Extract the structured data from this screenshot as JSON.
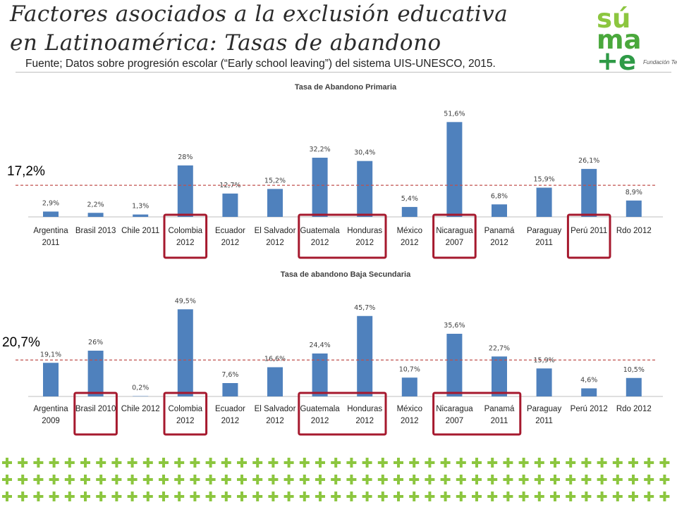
{
  "slide": {
    "title": "Factores asociados a la exclusión educativa en Latinoamérica: Tasas de abandono",
    "subtitle": "Fuente; Datos sobre progresión escolar (“Early school leaving”) del sistema UIS-UNESCO, 2015."
  },
  "logo": {
    "line1": "sú",
    "line2": "ma",
    "line3": "+e",
    "brand": "Fundación Telefónica",
    "colors": [
      "#8cc63f",
      "#4aa83c",
      "#2e9a46"
    ]
  },
  "colors": {
    "bar": "#4f81bd",
    "reference_line": "#c0504d",
    "highlight_box": "#a6192e",
    "pattern_plus": "#8cc63f"
  },
  "chart_data": [
    {
      "type": "bar",
      "title": "Tasa de Abandono Primaria",
      "categories": [
        [
          "Argentina",
          "2011"
        ],
        [
          "Brasil 2013"
        ],
        [
          "Chile 2011"
        ],
        [
          "Colombia",
          "2012"
        ],
        [
          "Ecuador",
          "2012"
        ],
        [
          "El Salvador",
          "2012"
        ],
        [
          "Guatemala",
          "2012"
        ],
        [
          "Honduras",
          "2012"
        ],
        [
          "México",
          "2012"
        ],
        [
          "Nicaragua",
          "2007"
        ],
        [
          "Panamá",
          "2012"
        ],
        [
          "Paraguay",
          "2011"
        ],
        [
          "Perú 2011"
        ],
        [
          "Rdo 2012"
        ]
      ],
      "values": [
        2.9,
        2.2,
        1.3,
        28,
        12.7,
        15.2,
        32.2,
        30.4,
        5.4,
        51.6,
        6.8,
        15.9,
        26.1,
        8.9
      ],
      "value_labels": [
        "2,9%",
        "2,2%",
        "1,3%",
        "28%",
        "12,7%",
        "15,2%",
        "32,2%",
        "30,4%",
        "5,4%",
        "51,6%",
        "6,8%",
        "15,9%",
        "26,1%",
        "8,9%"
      ],
      "reference": {
        "value": 17.2,
        "label": "17,2%"
      },
      "highlight_groups": [
        [
          3
        ],
        [
          6,
          7
        ],
        [
          9
        ],
        [
          12
        ]
      ],
      "ylim": [
        0,
        55
      ],
      "xlabel": "",
      "ylabel": "",
      "grid": false,
      "legend": "none"
    },
    {
      "type": "bar",
      "title": "Tasa de abandono Baja Secundaria",
      "categories": [
        [
          "Argentina",
          "2009"
        ],
        [
          "Brasil 2010"
        ],
        [
          "Chile 2012"
        ],
        [
          "Colombia",
          "2012"
        ],
        [
          "Ecuador",
          "2012"
        ],
        [
          "El Salvador",
          "2012"
        ],
        [
          "Guatemala",
          "2012"
        ],
        [
          "Honduras",
          "2012"
        ],
        [
          "México",
          "2012"
        ],
        [
          "Nicaragua",
          "2007"
        ],
        [
          "Panamá",
          "2011"
        ],
        [
          "Paraguay",
          "2011"
        ],
        [
          "Perú 2012"
        ],
        [
          "Rdo 2012"
        ]
      ],
      "values": [
        19.1,
        26,
        0.2,
        49.5,
        7.6,
        16.6,
        24.4,
        45.7,
        10.7,
        35.6,
        22.7,
        15.9,
        4.6,
        10.5
      ],
      "value_labels": [
        "19,1%",
        "26%",
        "0,2%",
        "49,5%",
        "7,6%",
        "16,6%",
        "24,4%",
        "45,7%",
        "10,7%",
        "35,6%",
        "22,7%",
        "15,9%",
        "4,6%",
        "10,5%"
      ],
      "reference": {
        "value": 20.7,
        "label": "20,7%"
      },
      "highlight_groups": [
        [
          1
        ],
        [
          3
        ],
        [
          6,
          7
        ],
        [
          9,
          10
        ]
      ],
      "ylim": [
        0,
        55
      ],
      "xlabel": "",
      "ylabel": "",
      "grid": false,
      "legend": "none"
    }
  ]
}
